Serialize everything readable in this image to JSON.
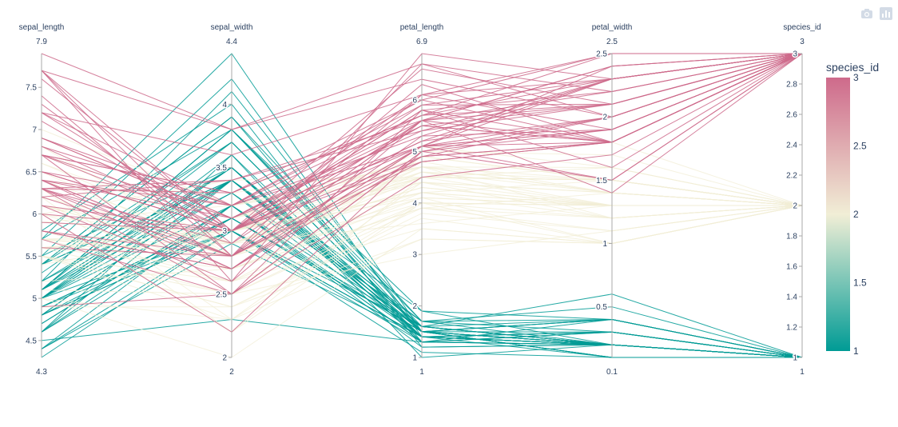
{
  "modebar": {
    "camera_icon": "camera-icon",
    "plotly_logo": "plotly-logo-icon"
  },
  "chart_data": {
    "type": "parallel_coordinates",
    "dimensions": [
      {
        "label": "sepal_length",
        "range": [
          4.3,
          7.9
        ],
        "ticks": [
          4.5,
          5,
          5.5,
          6,
          6.5,
          7,
          7.5
        ],
        "range_labels": [
          "4.3",
          "7.9"
        ]
      },
      {
        "label": "sepal_width",
        "range": [
          2,
          4.4
        ],
        "ticks": [
          2,
          2.5,
          3,
          3.5,
          4
        ],
        "range_labels": [
          "2",
          "4.4"
        ]
      },
      {
        "label": "petal_length",
        "range": [
          1,
          6.9
        ],
        "ticks": [
          1,
          2,
          3,
          4,
          5,
          6
        ],
        "range_labels": [
          "1",
          "6.9"
        ]
      },
      {
        "label": "petal_width",
        "range": [
          0.1,
          2.5
        ],
        "ticks": [
          0.5,
          1,
          1.5,
          2,
          2.5
        ],
        "range_labels": [
          "0.1",
          "2.5"
        ]
      },
      {
        "label": "species_id",
        "range": [
          1,
          3
        ],
        "ticks": [
          1,
          1.2,
          1.4,
          1.6,
          1.8,
          2,
          2.2,
          2.4,
          2.6,
          2.8,
          3
        ],
        "range_labels": [
          "1",
          "3"
        ]
      }
    ],
    "colorbar": {
      "title": "species_id",
      "ticks": [
        "1",
        "1.5",
        "2",
        "2.5",
        "3"
      ],
      "colorscale": [
        "#009B95",
        "#F1EED6",
        "#CE6A8B"
      ]
    },
    "records": [
      [
        5.1,
        3.5,
        1.4,
        0.2,
        1
      ],
      [
        4.9,
        3.0,
        1.4,
        0.2,
        1
      ],
      [
        4.7,
        3.2,
        1.3,
        0.2,
        1
      ],
      [
        4.6,
        3.1,
        1.5,
        0.2,
        1
      ],
      [
        5.0,
        3.6,
        1.4,
        0.2,
        1
      ],
      [
        5.4,
        3.9,
        1.7,
        0.4,
        1
      ],
      [
        4.6,
        3.4,
        1.4,
        0.3,
        1
      ],
      [
        5.0,
        3.4,
        1.5,
        0.2,
        1
      ],
      [
        4.4,
        2.9,
        1.4,
        0.2,
        1
      ],
      [
        4.9,
        3.1,
        1.5,
        0.1,
        1
      ],
      [
        5.4,
        3.7,
        1.5,
        0.2,
        1
      ],
      [
        4.8,
        3.4,
        1.6,
        0.2,
        1
      ],
      [
        4.8,
        3.0,
        1.4,
        0.1,
        1
      ],
      [
        4.3,
        3.0,
        1.1,
        0.1,
        1
      ],
      [
        5.8,
        4.0,
        1.2,
        0.2,
        1
      ],
      [
        5.7,
        4.4,
        1.5,
        0.4,
        1
      ],
      [
        5.4,
        3.9,
        1.3,
        0.4,
        1
      ],
      [
        5.1,
        3.5,
        1.4,
        0.3,
        1
      ],
      [
        5.7,
        3.8,
        1.7,
        0.3,
        1
      ],
      [
        5.1,
        3.8,
        1.5,
        0.3,
        1
      ],
      [
        5.4,
        3.4,
        1.7,
        0.2,
        1
      ],
      [
        5.1,
        3.7,
        1.5,
        0.4,
        1
      ],
      [
        4.6,
        3.6,
        1.0,
        0.2,
        1
      ],
      [
        5.1,
        3.3,
        1.7,
        0.5,
        1
      ],
      [
        4.8,
        3.4,
        1.9,
        0.2,
        1
      ],
      [
        5.0,
        3.0,
        1.6,
        0.2,
        1
      ],
      [
        5.0,
        3.4,
        1.6,
        0.4,
        1
      ],
      [
        5.2,
        3.5,
        1.5,
        0.2,
        1
      ],
      [
        5.2,
        3.4,
        1.4,
        0.2,
        1
      ],
      [
        4.7,
        3.2,
        1.6,
        0.2,
        1
      ],
      [
        4.8,
        3.1,
        1.6,
        0.2,
        1
      ],
      [
        5.4,
        3.4,
        1.5,
        0.4,
        1
      ],
      [
        5.2,
        4.1,
        1.5,
        0.1,
        1
      ],
      [
        5.5,
        4.2,
        1.4,
        0.2,
        1
      ],
      [
        4.9,
        3.1,
        1.5,
        0.1,
        1
      ],
      [
        5.0,
        3.2,
        1.2,
        0.2,
        1
      ],
      [
        5.5,
        3.5,
        1.3,
        0.2,
        1
      ],
      [
        4.9,
        3.1,
        1.5,
        0.1,
        1
      ],
      [
        4.4,
        3.0,
        1.3,
        0.2,
        1
      ],
      [
        5.1,
        3.4,
        1.5,
        0.2,
        1
      ],
      [
        5.0,
        3.5,
        1.3,
        0.3,
        1
      ],
      [
        4.5,
        2.3,
        1.3,
        0.3,
        1
      ],
      [
        4.4,
        3.2,
        1.3,
        0.2,
        1
      ],
      [
        5.0,
        3.5,
        1.6,
        0.6,
        1
      ],
      [
        5.1,
        3.8,
        1.9,
        0.4,
        1
      ],
      [
        4.8,
        3.0,
        1.4,
        0.3,
        1
      ],
      [
        5.1,
        3.8,
        1.6,
        0.2,
        1
      ],
      [
        4.6,
        3.2,
        1.4,
        0.2,
        1
      ],
      [
        5.3,
        3.7,
        1.5,
        0.2,
        1
      ],
      [
        5.0,
        3.3,
        1.4,
        0.2,
        1
      ],
      [
        7.0,
        3.2,
        4.7,
        1.4,
        2
      ],
      [
        6.4,
        3.2,
        4.5,
        1.5,
        2
      ],
      [
        6.9,
        3.1,
        4.9,
        1.5,
        2
      ],
      [
        5.5,
        2.3,
        4.0,
        1.3,
        2
      ],
      [
        6.5,
        2.8,
        4.6,
        1.5,
        2
      ],
      [
        5.7,
        2.8,
        4.5,
        1.3,
        2
      ],
      [
        6.3,
        3.3,
        4.7,
        1.6,
        2
      ],
      [
        4.9,
        2.4,
        3.3,
        1.0,
        2
      ],
      [
        6.6,
        2.9,
        4.6,
        1.3,
        2
      ],
      [
        5.2,
        2.7,
        3.9,
        1.4,
        2
      ],
      [
        5.0,
        2.0,
        3.5,
        1.0,
        2
      ],
      [
        5.9,
        3.0,
        4.2,
        1.5,
        2
      ],
      [
        6.0,
        2.2,
        4.0,
        1.0,
        2
      ],
      [
        6.1,
        2.9,
        4.7,
        1.4,
        2
      ],
      [
        5.6,
        2.9,
        3.6,
        1.3,
        2
      ],
      [
        6.7,
        3.1,
        4.4,
        1.4,
        2
      ],
      [
        5.6,
        3.0,
        4.5,
        1.5,
        2
      ],
      [
        5.8,
        2.7,
        4.1,
        1.0,
        2
      ],
      [
        6.2,
        2.2,
        4.5,
        1.5,
        2
      ],
      [
        5.6,
        2.5,
        3.9,
        1.1,
        2
      ],
      [
        5.9,
        3.2,
        4.8,
        1.8,
        2
      ],
      [
        6.1,
        2.8,
        4.0,
        1.3,
        2
      ],
      [
        6.3,
        2.5,
        4.9,
        1.5,
        2
      ],
      [
        6.1,
        2.8,
        4.7,
        1.2,
        2
      ],
      [
        6.4,
        2.9,
        4.3,
        1.3,
        2
      ],
      [
        6.6,
        3.0,
        4.4,
        1.4,
        2
      ],
      [
        6.8,
        2.8,
        4.8,
        1.4,
        2
      ],
      [
        6.7,
        3.0,
        5.0,
        1.7,
        2
      ],
      [
        6.0,
        2.9,
        4.5,
        1.5,
        2
      ],
      [
        5.7,
        2.6,
        3.5,
        1.0,
        2
      ],
      [
        5.5,
        2.4,
        3.8,
        1.1,
        2
      ],
      [
        5.5,
        2.4,
        3.7,
        1.0,
        2
      ],
      [
        5.8,
        2.7,
        3.9,
        1.2,
        2
      ],
      [
        6.0,
        2.7,
        5.1,
        1.6,
        2
      ],
      [
        5.4,
        3.0,
        4.5,
        1.5,
        2
      ],
      [
        6.0,
        3.4,
        4.5,
        1.6,
        2
      ],
      [
        6.7,
        3.1,
        4.7,
        1.5,
        2
      ],
      [
        6.3,
        2.3,
        4.4,
        1.3,
        2
      ],
      [
        5.6,
        3.0,
        4.1,
        1.3,
        2
      ],
      [
        5.5,
        2.5,
        4.0,
        1.3,
        2
      ],
      [
        5.5,
        2.6,
        4.4,
        1.2,
        2
      ],
      [
        6.1,
        3.0,
        4.6,
        1.4,
        2
      ],
      [
        5.8,
        2.6,
        4.0,
        1.2,
        2
      ],
      [
        5.0,
        2.3,
        3.3,
        1.0,
        2
      ],
      [
        5.6,
        2.7,
        4.2,
        1.3,
        2
      ],
      [
        5.7,
        3.0,
        4.2,
        1.2,
        2
      ],
      [
        5.7,
        2.9,
        4.2,
        1.3,
        2
      ],
      [
        6.2,
        2.9,
        4.3,
        1.3,
        2
      ],
      [
        5.1,
        2.5,
        3.0,
        1.1,
        2
      ],
      [
        5.7,
        2.8,
        4.1,
        1.3,
        2
      ],
      [
        6.3,
        3.3,
        6.0,
        2.5,
        3
      ],
      [
        5.8,
        2.7,
        5.1,
        1.9,
        3
      ],
      [
        7.1,
        3.0,
        5.9,
        2.1,
        3
      ],
      [
        6.3,
        2.9,
        5.6,
        1.8,
        3
      ],
      [
        6.5,
        3.0,
        5.8,
        2.2,
        3
      ],
      [
        7.6,
        3.0,
        6.6,
        2.1,
        3
      ],
      [
        4.9,
        2.5,
        4.5,
        1.7,
        3
      ],
      [
        7.3,
        2.9,
        6.3,
        1.8,
        3
      ],
      [
        6.7,
        2.5,
        5.8,
        1.8,
        3
      ],
      [
        7.2,
        3.6,
        6.1,
        2.5,
        3
      ],
      [
        6.5,
        3.2,
        5.1,
        2.0,
        3
      ],
      [
        6.4,
        2.7,
        5.3,
        1.9,
        3
      ],
      [
        6.8,
        3.0,
        5.5,
        2.1,
        3
      ],
      [
        5.7,
        2.5,
        5.0,
        2.0,
        3
      ],
      [
        5.8,
        2.8,
        5.1,
        2.4,
        3
      ],
      [
        6.4,
        3.2,
        5.3,
        2.3,
        3
      ],
      [
        6.5,
        3.0,
        5.5,
        1.8,
        3
      ],
      [
        7.7,
        3.8,
        6.7,
        2.2,
        3
      ],
      [
        7.7,
        2.6,
        6.9,
        2.3,
        3
      ],
      [
        6.0,
        2.2,
        5.0,
        1.5,
        3
      ],
      [
        6.9,
        3.2,
        5.7,
        2.3,
        3
      ],
      [
        5.6,
        2.8,
        4.9,
        2.0,
        3
      ],
      [
        7.7,
        2.8,
        6.7,
        2.0,
        3
      ],
      [
        6.3,
        2.7,
        4.9,
        1.8,
        3
      ],
      [
        6.7,
        3.3,
        5.7,
        2.1,
        3
      ],
      [
        7.2,
        3.2,
        6.0,
        1.8,
        3
      ],
      [
        6.2,
        2.8,
        4.8,
        1.8,
        3
      ],
      [
        6.1,
        3.0,
        4.9,
        1.8,
        3
      ],
      [
        6.4,
        2.8,
        5.6,
        2.1,
        3
      ],
      [
        7.2,
        3.0,
        5.8,
        1.6,
        3
      ],
      [
        7.4,
        2.8,
        6.1,
        1.9,
        3
      ],
      [
        7.9,
        3.8,
        6.4,
        2.0,
        3
      ],
      [
        6.4,
        2.8,
        5.6,
        2.2,
        3
      ],
      [
        6.3,
        2.8,
        5.1,
        1.5,
        3
      ],
      [
        6.1,
        2.6,
        5.6,
        1.4,
        3
      ],
      [
        7.7,
        3.0,
        6.1,
        2.3,
        3
      ],
      [
        6.3,
        3.4,
        5.6,
        2.4,
        3
      ],
      [
        6.4,
        3.1,
        5.5,
        1.8,
        3
      ],
      [
        6.0,
        3.0,
        4.8,
        1.8,
        3
      ],
      [
        6.9,
        3.1,
        5.4,
        2.1,
        3
      ],
      [
        6.7,
        3.1,
        5.6,
        2.4,
        3
      ],
      [
        6.9,
        3.1,
        5.1,
        2.3,
        3
      ],
      [
        5.8,
        2.7,
        5.1,
        1.9,
        3
      ],
      [
        6.8,
        3.2,
        5.9,
        2.3,
        3
      ],
      [
        6.7,
        3.3,
        5.7,
        2.5,
        3
      ],
      [
        6.7,
        3.0,
        5.2,
        2.3,
        3
      ],
      [
        6.3,
        2.5,
        5.0,
        1.9,
        3
      ],
      [
        6.5,
        3.0,
        5.2,
        2.0,
        3
      ],
      [
        6.2,
        3.4,
        5.4,
        2.3,
        3
      ],
      [
        5.9,
        3.0,
        5.1,
        1.8,
        3
      ]
    ]
  }
}
